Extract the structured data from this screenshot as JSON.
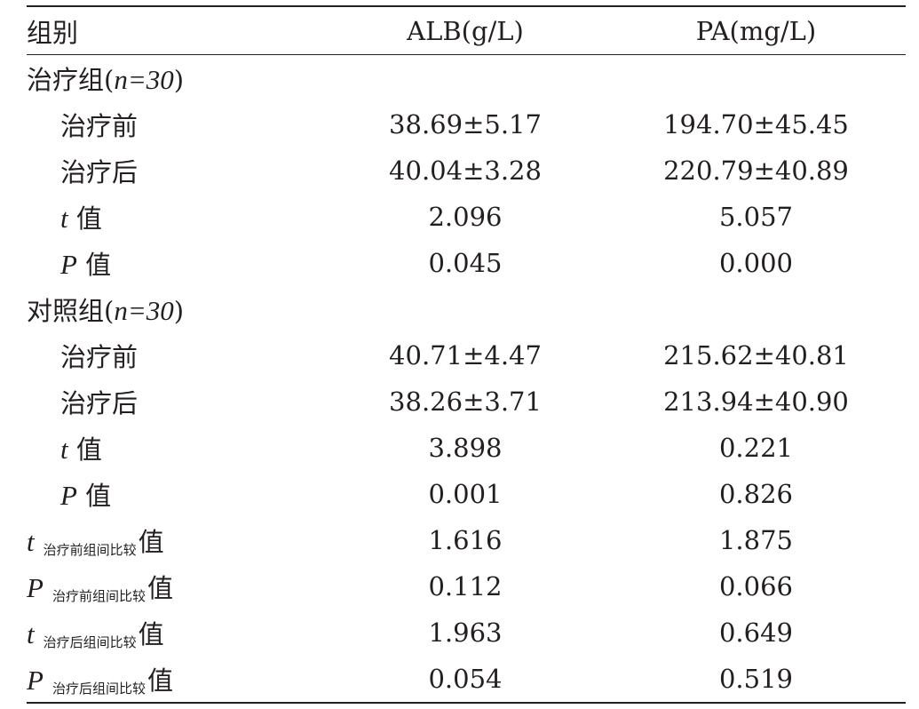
{
  "headers": [
    "组别",
    "ALB(g/L)",
    "PA(mg/L)"
  ],
  "groups": [
    {
      "name": "治疗组",
      "n": "n=30",
      "rows": [
        {
          "label": "治疗前",
          "alb": "38.69±5.17",
          "pa": "194.70±45.45"
        },
        {
          "label": "治疗后",
          "alb": "40.04±3.28",
          "pa": "220.79±40.89"
        },
        {
          "stat": "t",
          "label": "值",
          "alb": "2.096",
          "pa": "5.057"
        },
        {
          "stat": "P",
          "label": "值",
          "alb": "0.045",
          "pa": "0.000"
        }
      ]
    },
    {
      "name": "对照组",
      "n": "n=30",
      "rows": [
        {
          "label": "治疗前",
          "alb": "40.71±4.47",
          "pa": "215.62±40.81"
        },
        {
          "label": "治疗后",
          "alb": "38.26±3.71",
          "pa": "213.94±40.90"
        },
        {
          "stat": "t",
          "label": "值",
          "alb": "3.898",
          "pa": "0.221"
        },
        {
          "stat": "P",
          "label": "值",
          "alb": "0.001",
          "pa": "0.826"
        }
      ]
    }
  ],
  "comparisons": [
    {
      "stat": "t",
      "sub": "治疗前组间比较",
      "label": "值",
      "alb": "1.616",
      "pa": "1.875"
    },
    {
      "stat": "P",
      "sub": "治疗前组间比较",
      "label": "值",
      "alb": "0.112",
      "pa": "0.066"
    },
    {
      "stat": "t",
      "sub": "治疗后组间比较",
      "label": "值",
      "alb": "1.963",
      "pa": "0.649"
    },
    {
      "stat": "P",
      "sub": "治疗后组间比较",
      "label": "值",
      "alb": "0.054",
      "pa": "0.519"
    }
  ]
}
